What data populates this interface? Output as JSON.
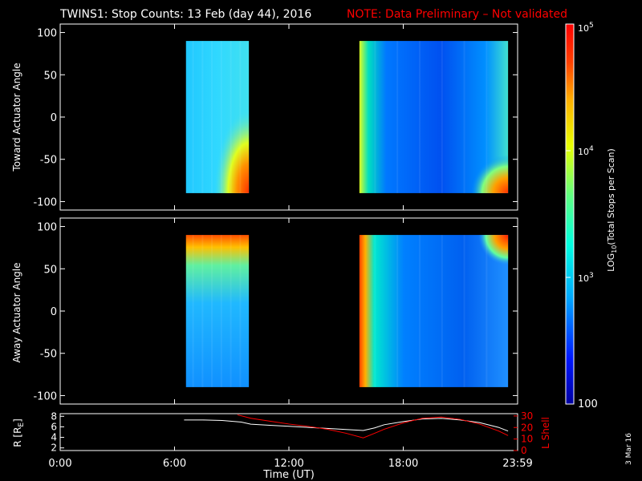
{
  "title": "TWINS1: Stop Counts: 13 Feb (day  44), 2016",
  "note": "NOTE: Data Preliminary – Not validated",
  "date_stamp": "3 Mar 16",
  "colors": {
    "background": "#000000",
    "foreground": "#ffffff",
    "note": "#ff0000",
    "lshell": "#ff0000",
    "colormap": [
      "#0000a0",
      "#0018ff",
      "#00a8ff",
      "#00ffe0",
      "#60ff80",
      "#e8ff00",
      "#ffb000",
      "#ff4000",
      "#ff0000"
    ]
  },
  "chart_data": [
    {
      "type": "heatmap",
      "ylabel": "Toward Actuator Angle",
      "xlim": [
        0,
        24
      ],
      "ylim": [
        -110,
        110
      ],
      "yticks": [
        -100,
        -50,
        0,
        50,
        100
      ],
      "colorbar_range": [
        100,
        100000
      ],
      "log_scale": true,
      "data_blocks": [
        {
          "x_start": 6.6,
          "x_end": 9.9,
          "y_start": -90,
          "y_end": 90
        },
        {
          "x_start": 15.7,
          "x_end": 23.5,
          "y_start": -90,
          "y_end": 90
        }
      ]
    },
    {
      "type": "heatmap",
      "ylabel": "Away Actuator Angle",
      "xlim": [
        0,
        24
      ],
      "ylim": [
        -110,
        110
      ],
      "yticks": [
        -100,
        -50,
        0,
        50,
        100
      ],
      "colorbar_range": [
        100,
        100000
      ],
      "log_scale": true,
      "data_blocks": [
        {
          "x_start": 6.6,
          "x_end": 9.9,
          "y_start": -90,
          "y_end": 90
        },
        {
          "x_start": 15.7,
          "x_end": 23.5,
          "y_start": -90,
          "y_end": 90
        }
      ]
    },
    {
      "type": "line",
      "ylabel_left": "R [R",
      "ylabel_left_sub": "E",
      "ylabel_left_end": "]",
      "ylabel_right": "L Shell",
      "xlabel": "Time (UT)",
      "xlim": [
        0,
        24
      ],
      "xticks": [
        0,
        6,
        12,
        18,
        24
      ],
      "xtick_labels": [
        "0:00",
        "6:00",
        "12:00",
        "18:00",
        "23:59"
      ],
      "ylim_left": [
        1.5,
        8.5
      ],
      "yticks_left": [
        2,
        4,
        6,
        8
      ],
      "ylim_right": [
        0,
        32
      ],
      "yticks_right": [
        0,
        10,
        20,
        30
      ],
      "series": [
        {
          "axis": "left",
          "color": "#ffffff",
          "x": [
            6.5,
            7.5,
            8.5,
            9.5,
            10.0,
            11.0,
            12.0,
            13.0,
            14.0,
            15.0,
            15.9,
            16.5,
            17.0,
            18.0,
            19.0,
            20.0,
            21.0,
            22.0,
            23.0,
            23.5
          ],
          "y": [
            7.3,
            7.3,
            7.2,
            6.9,
            6.5,
            6.3,
            6.1,
            5.9,
            5.7,
            5.5,
            5.3,
            5.8,
            6.4,
            7.0,
            7.5,
            7.6,
            7.3,
            6.8,
            5.9,
            5.2
          ]
        },
        {
          "axis": "right",
          "color": "#ff0000",
          "x": [
            9.3,
            10.0,
            11.0,
            12.0,
            13.0,
            14.0,
            15.0,
            15.9,
            16.5,
            17.0,
            18.0,
            19.0,
            20.0,
            21.0,
            22.0,
            23.0,
            23.5
          ],
          "y": [
            31,
            28,
            25.5,
            23,
            21,
            18.5,
            15,
            11,
            15,
            18.5,
            24,
            28,
            29,
            27,
            23,
            17,
            13
          ]
        }
      ]
    }
  ],
  "colorbar": {
    "label": "LOG",
    "label_sub": "10",
    "label_rest": "(Total Stops per Scan)",
    "ticks": [
      {
        "main": "10",
        "sup": "5",
        "value": 100000
      },
      {
        "main": "10",
        "sup": "4",
        "value": 10000
      },
      {
        "main": "10",
        "sup": "3",
        "value": 1000
      },
      {
        "main": "100",
        "sup": "",
        "value": 100
      }
    ]
  }
}
